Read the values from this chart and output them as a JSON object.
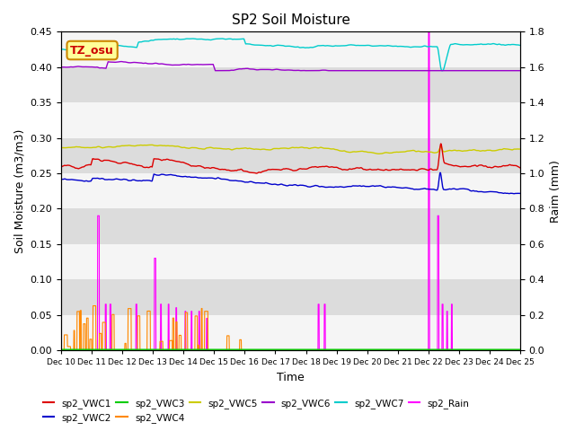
{
  "title": "SP2 Soil Moisture",
  "xlabel": "Time",
  "ylabel_left": "Soil Moisture (m3/m3)",
  "ylabel_right": "Raim (mm)",
  "ylim_left": [
    0.0,
    0.45
  ],
  "ylim_right": [
    0.0,
    1.8
  ],
  "xtick_labels": [
    "Dec 10",
    "Dec 11",
    "Dec 12",
    "Dec 13",
    "Dec 14",
    "Dec 15",
    "Dec 16",
    "Dec 17",
    "Dec 18",
    "Dec 19",
    "Dec 20",
    "Dec 21",
    "Dec 22",
    "Dec 23",
    "Dec 24",
    "Dec 25"
  ],
  "plot_bg_color": "#e0e0e0",
  "annotation_box": {
    "text": "TZ_osu",
    "facecolor": "#ffff99",
    "edgecolor": "#cc8800",
    "fontsize": 9,
    "color": "#cc0000"
  },
  "colors": {
    "vwc1": "#dd0000",
    "vwc2": "#0000cc",
    "vwc3": "#00cc00",
    "vwc4": "#ff8800",
    "vwc5": "#cccc00",
    "vwc6": "#9900cc",
    "vwc7": "#00cccc",
    "rain": "#ff00ff"
  },
  "grid_colors": [
    "#f0f0f0",
    "#d8d8d8"
  ],
  "n_points": 2160,
  "n_days": 15
}
